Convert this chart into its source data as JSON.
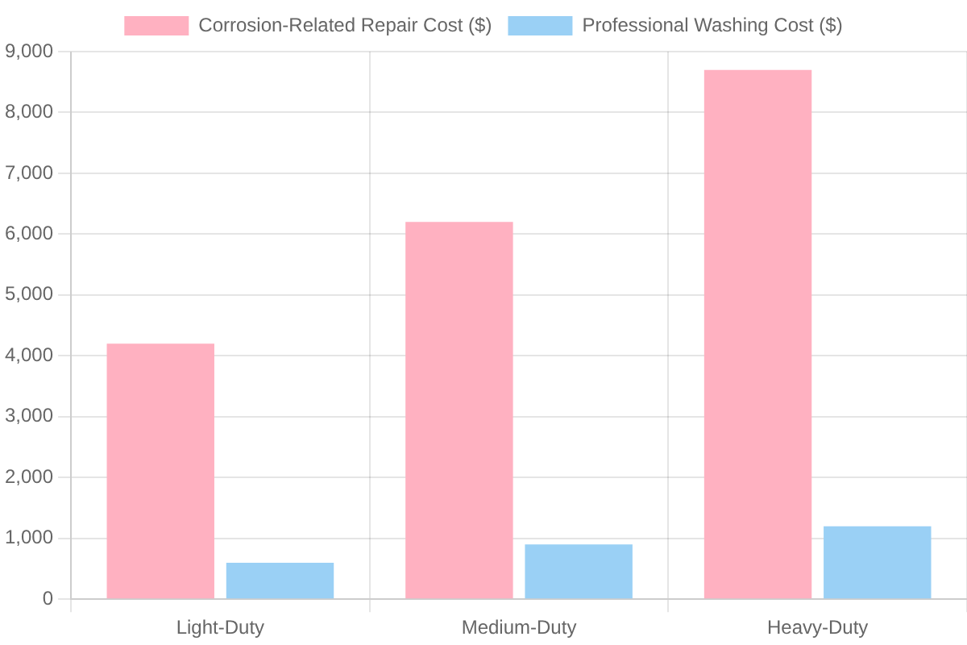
{
  "chart_data": {
    "type": "bar",
    "categories": [
      "Light-Duty",
      "Medium-Duty",
      "Heavy-Duty"
    ],
    "series": [
      {
        "name": "Corrosion-Related Repair Cost ($)",
        "color": "#ffb1c1",
        "values": [
          4200,
          6200,
          8700
        ]
      },
      {
        "name": "Professional Washing Cost ($)",
        "color": "#9ad0f5",
        "values": [
          600,
          900,
          1200
        ]
      }
    ],
    "ylim": [
      0,
      9000
    ],
    "yticks": [
      {
        "value": 0,
        "label": "0"
      },
      {
        "value": 1000,
        "label": "1,000"
      },
      {
        "value": 2000,
        "label": "2,000"
      },
      {
        "value": 3000,
        "label": "3,000"
      },
      {
        "value": 4000,
        "label": "4,000"
      },
      {
        "value": 5000,
        "label": "5,000"
      },
      {
        "value": 6000,
        "label": "6,000"
      },
      {
        "value": 7000,
        "label": "7,000"
      },
      {
        "value": 8000,
        "label": "8,000"
      },
      {
        "value": 9000,
        "label": "9,000"
      }
    ],
    "grid": true,
    "legend": "top"
  }
}
